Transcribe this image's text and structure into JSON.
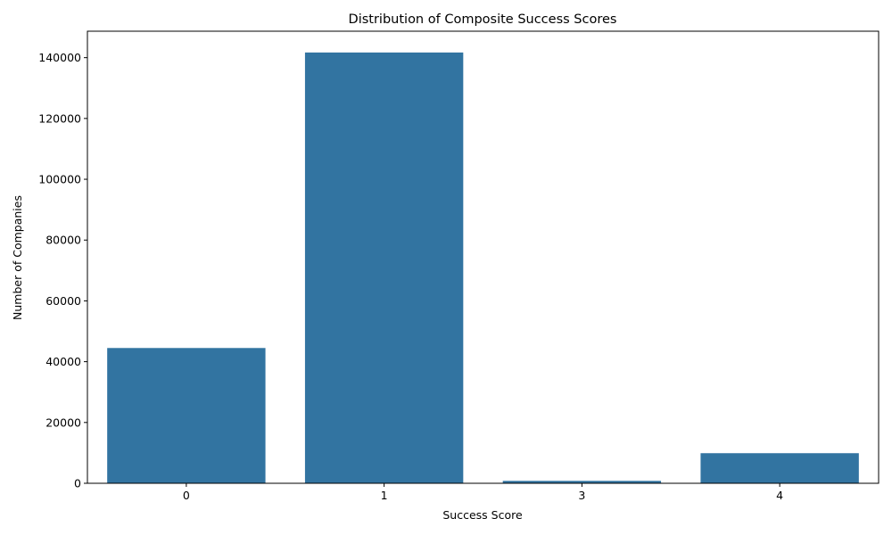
{
  "chart_data": {
    "type": "bar",
    "title": "Distribution of Composite Success Scores",
    "xlabel": "Success Score",
    "ylabel": "Number of Companies",
    "categories": [
      "0",
      "1",
      "3",
      "4"
    ],
    "values": [
      44500,
      141700,
      800,
      9900
    ],
    "ylim": [
      0,
      148700
    ],
    "yticks": [
      0,
      20000,
      40000,
      60000,
      80000,
      100000,
      120000,
      140000
    ],
    "bar_color": "#3274a1",
    "grid": false,
    "legend": "none"
  }
}
